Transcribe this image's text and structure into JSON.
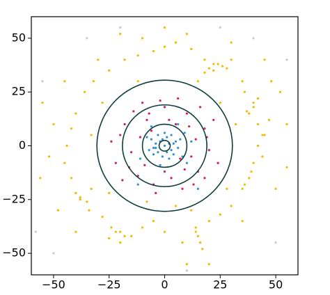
{
  "chart_data": {
    "type": "scatter",
    "xlim": [
      -60,
      60
    ],
    "ylim": [
      -60,
      60
    ],
    "xticks": [
      {
        "value": -50,
        "label": "−50"
      },
      {
        "value": -25,
        "label": "−25"
      },
      0,
      25,
      50
    ],
    "yticks": [
      {
        "value": -50,
        "label": "−50"
      },
      {
        "value": -25,
        "label": "−25"
      },
      0,
      25,
      50
    ],
    "circles": {
      "color": "#0b3d3d",
      "radii": [
        30.5,
        19,
        10,
        2.5
      ]
    },
    "series": [
      {
        "color": "#f5b800",
        "x": [
          40,
          38,
          42,
          36,
          44,
          35,
          28,
          22,
          18,
          12,
          5,
          0,
          -5,
          -12,
          -18,
          -25,
          -32,
          -36,
          -40,
          -42,
          -44,
          -45,
          -42,
          -40,
          -38,
          -34,
          -28,
          -24,
          -20,
          -15,
          -10,
          -5,
          0,
          8,
          14,
          15,
          16,
          17,
          14,
          20,
          25,
          30,
          35,
          38,
          40,
          42,
          45,
          47,
          40,
          37,
          42,
          36,
          39,
          44,
          22,
          24,
          26,
          20,
          18,
          30,
          48,
          52,
          50,
          -38,
          -35,
          -33,
          -50,
          -52,
          -55,
          -20,
          -18,
          -22,
          -25,
          -30,
          -10,
          10,
          30,
          45,
          55,
          -48,
          -40,
          55,
          -56,
          0,
          -20,
          20,
          10,
          35,
          -45,
          -28,
          28,
          25,
          -25,
          15,
          -12,
          5,
          32,
          -33,
          12,
          -8
        ],
        "values": [
          20,
          15,
          10,
          25,
          5,
          30,
          36,
          38,
          40,
          45,
          48,
          46,
          44,
          42,
          40,
          35,
          30,
          25,
          15,
          8,
          0,
          -8,
          -15,
          -22,
          -25,
          -30,
          -33,
          -38,
          -40,
          -42,
          -38,
          -35,
          -40,
          -45,
          -40,
          -42,
          -45,
          -48,
          -38,
          -35,
          -32,
          -28,
          -20,
          -15,
          -8,
          0,
          5,
          12,
          18,
          16,
          22,
          -18,
          -12,
          -5,
          35,
          38,
          37,
          36,
          34,
          40,
          30,
          25,
          -20,
          -24,
          -26,
          -20,
          10,
          -5,
          20,
          -45,
          -42,
          -40,
          -43,
          40,
          50,
          52,
          48,
          40,
          10,
          -30,
          -40,
          -10,
          -15,
          55,
          52,
          -55,
          -55,
          -35,
          30,
          20,
          -20,
          20,
          -22,
          30,
          30,
          -28,
          10,
          5,
          -30,
          -26
        ]
      },
      {
        "color": "#d81b60",
        "x": [
          5,
          -8,
          12,
          -15,
          18,
          -18,
          3,
          -5,
          10,
          -12,
          15,
          20,
          -20,
          0,
          8,
          -10,
          14,
          -16,
          6,
          -4,
          22,
          -22,
          18,
          -14,
          2,
          -9,
          11,
          16,
          -19,
          9,
          -2,
          13,
          -7,
          24,
          -24,
          0,
          19,
          -11,
          7,
          -6
        ],
        "values": [
          10,
          12,
          -5,
          -3,
          8,
          10,
          -15,
          -18,
          15,
          -14,
          -12,
          -2,
          5,
          18,
          -20,
          20,
          3,
          -10,
          22,
          -22,
          12,
          -8,
          -15,
          16,
          12,
          -9,
          9,
          18,
          -16,
          -11,
          21,
          -18,
          15,
          -8,
          2,
          -12,
          4,
          4,
          -6,
          7
        ]
      },
      {
        "color": "#2d8fd5",
        "x": [
          0,
          2,
          -2,
          3,
          -3,
          1,
          -4,
          5,
          -1,
          4,
          -5,
          2,
          -6,
          6,
          0,
          -3,
          3,
          -5,
          7,
          -7,
          1,
          -1,
          4,
          -4,
          8,
          -8,
          10,
          -6,
          12,
          -11,
          15,
          -12,
          6,
          -2,
          9
        ],
        "values": [
          0,
          1,
          2,
          -2,
          -3,
          4,
          1,
          2,
          -5,
          -4,
          -1,
          -6,
          3,
          -1,
          6,
          5,
          5,
          -4,
          3,
          -2,
          -3,
          3,
          1,
          -1,
          -5,
          4,
          -8,
          9,
          2,
          -6,
          -20,
          -18,
          10,
          -9,
          6
        ]
      },
      {
        "color": "#c8c8d8",
        "x": [
          -20,
          40,
          55,
          -55,
          25,
          -50,
          50,
          -35,
          10,
          -58
        ],
        "values": [
          55,
          50,
          40,
          30,
          55,
          -50,
          -45,
          50,
          -58,
          -40
        ]
      }
    ]
  }
}
